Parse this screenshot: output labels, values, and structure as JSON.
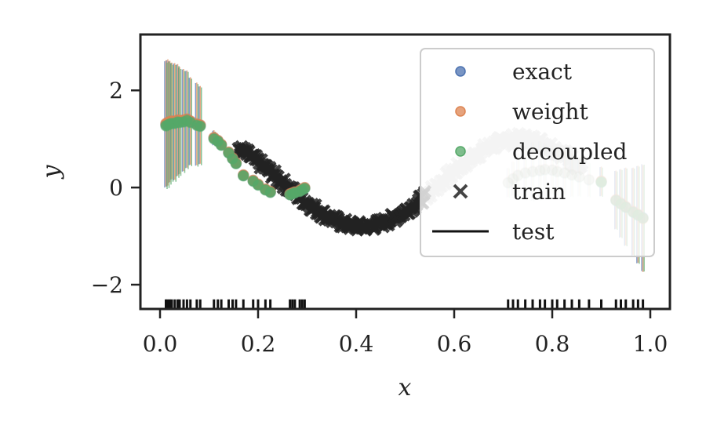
{
  "chart_data": {
    "type": "scatter",
    "title": "",
    "xlabel": "x",
    "ylabel": "y",
    "xlim": [
      -0.04,
      1.04
    ],
    "ylim": [
      -2.5,
      3.15
    ],
    "xticks": [
      0.0,
      0.2,
      0.4,
      0.6,
      0.8,
      1.0
    ],
    "xtick_labels": [
      "0.0",
      "0.2",
      "0.4",
      "0.6",
      "0.8",
      "1.0"
    ],
    "yticks": [
      -2,
      0,
      2
    ],
    "ytick_labels": [
      "−2",
      "0",
      "2"
    ],
    "grid": false,
    "legend_position": "top-right",
    "colors": {
      "exact": "#4c72b0",
      "weight": "#dd8452",
      "decoupled": "#55a868",
      "train": "#222222",
      "test": "#222222",
      "extrapolation_band": "#c8c8c8"
    },
    "legend": [
      {
        "label": "exact",
        "marker": "dot",
        "color": "#4c72b0"
      },
      {
        "label": "weight",
        "marker": "dot",
        "color": "#dd8452"
      },
      {
        "label": "decoupled",
        "marker": "dot",
        "color": "#55a868"
      },
      {
        "label": "train",
        "marker": "cross",
        "color": "#444444"
      },
      {
        "label": "test",
        "marker": "line",
        "color": "#111111"
      }
    ],
    "test_function": "sin(2*pi*x*1.55 + 0.7)*0.9 + 0.1",
    "train_x_range": [
      0.16,
      0.54
    ],
    "test_curve_x_range": [
      0.54,
      0.86
    ],
    "rug_y": -2.4,
    "rug_x": [
      0.012,
      0.016,
      0.02,
      0.024,
      0.03,
      0.036,
      0.04,
      0.048,
      0.055,
      0.062,
      0.075,
      0.082,
      0.11,
      0.118,
      0.125,
      0.14,
      0.148,
      0.155,
      0.17,
      0.19,
      0.2,
      0.215,
      0.225,
      0.265,
      0.27,
      0.275,
      0.285,
      0.29,
      0.295,
      0.71,
      0.72,
      0.73,
      0.745,
      0.76,
      0.775,
      0.785,
      0.8,
      0.81,
      0.825,
      0.84,
      0.855,
      0.875,
      0.9,
      0.93,
      0.94,
      0.95,
      0.965,
      0.975,
      0.985
    ],
    "series": [
      {
        "name": "exact",
        "x": [
          0.012,
          0.016,
          0.02,
          0.024,
          0.03,
          0.036,
          0.04,
          0.048,
          0.055,
          0.062,
          0.075,
          0.082,
          0.11,
          0.118,
          0.125,
          0.14,
          0.148,
          0.155,
          0.17,
          0.19,
          0.2,
          0.215,
          0.225,
          0.265,
          0.27,
          0.275,
          0.285,
          0.29,
          0.295,
          0.71,
          0.72,
          0.73,
          0.745,
          0.76,
          0.775,
          0.785,
          0.8,
          0.81,
          0.825,
          0.84,
          0.855,
          0.875,
          0.9,
          0.93,
          0.94,
          0.95,
          0.965,
          0.975,
          0.985
        ],
        "y": [
          1.3,
          1.32,
          1.35,
          1.36,
          1.35,
          1.38,
          1.37,
          1.38,
          1.4,
          1.36,
          1.3,
          1.28,
          1.02,
          0.96,
          0.88,
          0.72,
          0.6,
          0.5,
          0.25,
          0.14,
          0.06,
          -0.04,
          -0.09,
          -0.14,
          -0.12,
          -0.1,
          -0.07,
          -0.04,
          -0.01,
          0.1,
          0.18,
          0.25,
          0.3,
          0.33,
          0.35,
          0.37,
          0.36,
          0.33,
          0.3,
          0.26,
          0.22,
          0.16,
          0.12,
          -0.26,
          -0.33,
          -0.4,
          -0.5,
          -0.56,
          -0.62
        ],
        "yerr": [
          1.3,
          1.3,
          1.25,
          1.2,
          1.2,
          1.15,
          1.1,
          1.05,
          1.0,
          0.9,
          0.85,
          0.8,
          0.15,
          0.12,
          0.1,
          0.08,
          0.07,
          0.06,
          0.05,
          0.05,
          0.05,
          0.05,
          0.05,
          0.05,
          0.05,
          0.05,
          0.05,
          0.05,
          0.05,
          0.3,
          0.35,
          0.45,
          0.55,
          0.6,
          0.6,
          0.55,
          0.5,
          0.5,
          0.45,
          0.45,
          0.4,
          0.35,
          0.3,
          0.6,
          0.7,
          0.8,
          0.9,
          1.0,
          1.1
        ]
      },
      {
        "name": "weight",
        "x": [
          0.012,
          0.016,
          0.02,
          0.024,
          0.03,
          0.036,
          0.04,
          0.048,
          0.055,
          0.062,
          0.075,
          0.082,
          0.11,
          0.118,
          0.125,
          0.14,
          0.148,
          0.155,
          0.17,
          0.19,
          0.2,
          0.215,
          0.225,
          0.265,
          0.27,
          0.275,
          0.285,
          0.29,
          0.295,
          0.71,
          0.72,
          0.73,
          0.745,
          0.76,
          0.775,
          0.785,
          0.8,
          0.81,
          0.825,
          0.84,
          0.855,
          0.875,
          0.9,
          0.93,
          0.94,
          0.95,
          0.965,
          0.975,
          0.985
        ],
        "y": [
          1.32,
          1.34,
          1.36,
          1.37,
          1.36,
          1.39,
          1.38,
          1.39,
          1.41,
          1.37,
          1.31,
          1.29,
          1.03,
          0.97,
          0.89,
          0.73,
          0.61,
          0.51,
          0.26,
          0.15,
          0.07,
          -0.03,
          -0.08,
          -0.13,
          -0.11,
          -0.09,
          -0.06,
          -0.03,
          0.0,
          0.11,
          0.19,
          0.26,
          0.31,
          0.34,
          0.36,
          0.38,
          0.37,
          0.34,
          0.31,
          0.27,
          0.23,
          0.17,
          0.13,
          -0.25,
          -0.32,
          -0.39,
          -0.49,
          -0.55,
          -0.64
        ],
        "yerr": [
          1.3,
          1.3,
          1.25,
          1.2,
          1.2,
          1.15,
          1.1,
          1.05,
          1.0,
          0.9,
          0.85,
          0.8,
          0.15,
          0.12,
          0.1,
          0.08,
          0.07,
          0.06,
          0.05,
          0.05,
          0.05,
          0.05,
          0.05,
          0.05,
          0.05,
          0.05,
          0.05,
          0.05,
          0.05,
          0.3,
          0.35,
          0.45,
          0.55,
          0.6,
          0.6,
          0.55,
          0.5,
          0.5,
          0.45,
          0.45,
          0.4,
          0.35,
          0.3,
          0.6,
          0.7,
          0.8,
          0.9,
          1.0,
          1.1
        ]
      },
      {
        "name": "decoupled",
        "x": [
          0.012,
          0.016,
          0.02,
          0.024,
          0.03,
          0.036,
          0.04,
          0.048,
          0.055,
          0.062,
          0.075,
          0.082,
          0.11,
          0.118,
          0.125,
          0.14,
          0.148,
          0.155,
          0.17,
          0.19,
          0.2,
          0.215,
          0.225,
          0.265,
          0.27,
          0.275,
          0.285,
          0.29,
          0.295,
          0.71,
          0.72,
          0.73,
          0.745,
          0.76,
          0.775,
          0.785,
          0.8,
          0.81,
          0.825,
          0.84,
          0.855,
          0.875,
          0.9,
          0.93,
          0.94,
          0.95,
          0.965,
          0.975,
          0.985
        ],
        "y": [
          1.27,
          1.29,
          1.31,
          1.32,
          1.32,
          1.35,
          1.34,
          1.35,
          1.38,
          1.34,
          1.28,
          1.26,
          1.0,
          0.95,
          0.87,
          0.71,
          0.59,
          0.49,
          0.24,
          0.13,
          0.05,
          -0.05,
          -0.1,
          -0.15,
          -0.13,
          -0.11,
          -0.08,
          -0.05,
          -0.02,
          0.09,
          0.17,
          0.24,
          0.29,
          0.32,
          0.34,
          0.36,
          0.35,
          0.32,
          0.29,
          0.25,
          0.21,
          0.15,
          0.11,
          -0.27,
          -0.34,
          -0.41,
          -0.51,
          -0.57,
          -0.63
        ],
        "yerr": [
          1.3,
          1.3,
          1.25,
          1.2,
          1.2,
          1.15,
          1.1,
          1.05,
          1.0,
          0.9,
          0.85,
          0.8,
          0.15,
          0.12,
          0.1,
          0.08,
          0.07,
          0.06,
          0.05,
          0.05,
          0.05,
          0.05,
          0.05,
          0.05,
          0.05,
          0.05,
          0.05,
          0.05,
          0.05,
          0.3,
          0.35,
          0.45,
          0.55,
          0.6,
          0.6,
          0.55,
          0.5,
          0.5,
          0.45,
          0.45,
          0.4,
          0.35,
          0.3,
          0.6,
          0.7,
          0.8,
          0.9,
          1.0,
          1.1
        ]
      }
    ]
  }
}
